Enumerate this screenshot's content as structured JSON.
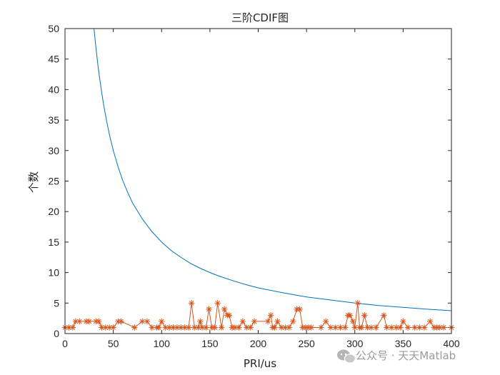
{
  "chart_data": {
    "type": "line",
    "title": "三阶CDIF图",
    "xlabel": "PRI/us",
    "ylabel": "个数",
    "xlim": [
      0,
      400
    ],
    "ylim": [
      0,
      50
    ],
    "xticks": [
      0,
      50,
      100,
      150,
      200,
      250,
      300,
      350,
      400
    ],
    "yticks": [
      0,
      5,
      10,
      15,
      20,
      25,
      30,
      35,
      40,
      45,
      50
    ],
    "grid": false,
    "legend": "none",
    "series": [
      {
        "style": "threshold curve (approx. y = 1500/x)",
        "color": "#0072BD",
        "x": [
          30,
          32,
          34,
          36,
          38,
          40,
          43,
          46,
          50,
          55,
          60,
          65,
          70,
          80,
          90,
          100,
          110,
          120,
          130,
          140,
          150,
          160,
          175,
          190,
          200,
          225,
          250,
          275,
          300,
          325,
          350,
          375,
          400
        ],
        "y": [
          50,
          46.9,
          44.1,
          41.7,
          39.5,
          37.5,
          34.9,
          32.6,
          30,
          27.3,
          25,
          23.1,
          21.4,
          18.8,
          16.7,
          15,
          13.6,
          12.5,
          11.5,
          10.7,
          10,
          9.4,
          8.6,
          7.9,
          7.5,
          6.7,
          6,
          5.5,
          5,
          4.6,
          4.3,
          4,
          3.75
        ]
      },
      {
        "style": "counts with asterisk markers",
        "color": "#D95319",
        "x": [
          0,
          4,
          8,
          11,
          15,
          22,
          25,
          32,
          35,
          38,
          42,
          46,
          50,
          55,
          58,
          72,
          80,
          85,
          90,
          95,
          97,
          100,
          104,
          108,
          112,
          116,
          120,
          124,
          128,
          131,
          134,
          138,
          140,
          142,
          146,
          149,
          152,
          155,
          158,
          162,
          165,
          168,
          170,
          173,
          176,
          180,
          184,
          188,
          192,
          196,
          210,
          213,
          215,
          217,
          220,
          224,
          228,
          232,
          236,
          240,
          243,
          246,
          249,
          252,
          255,
          265,
          270,
          275,
          280,
          285,
          290,
          293,
          295,
          298,
          300,
          303,
          305,
          307,
          310,
          313,
          317,
          322,
          330,
          333,
          338,
          343,
          347,
          350,
          355,
          362,
          367,
          372,
          378,
          382,
          385,
          388,
          392,
          400
        ],
        "y": [
          1,
          1,
          1,
          2,
          2,
          2,
          2,
          2,
          2,
          1,
          1,
          1,
          1,
          2,
          2,
          1,
          2,
          2,
          1,
          1,
          1,
          2,
          1,
          1,
          1,
          1,
          1,
          1,
          1,
          5,
          1,
          1,
          2,
          1,
          1,
          4,
          1,
          1,
          5,
          1,
          4,
          3,
          3,
          1,
          1,
          1,
          2,
          1,
          1,
          2,
          2,
          3,
          1,
          1,
          2,
          1,
          1,
          1,
          2,
          4,
          4,
          1,
          1,
          1,
          1,
          1,
          2,
          1,
          1,
          1,
          1,
          3,
          3,
          2,
          1,
          5,
          1,
          1,
          3,
          1,
          1,
          1,
          3,
          1,
          1,
          1,
          1,
          2,
          1,
          1,
          1,
          1,
          2,
          1,
          1,
          1,
          1,
          1
        ]
      }
    ]
  },
  "watermark": {
    "text": "公众号 · 天天Matlab",
    "icon": "wechat-icon"
  }
}
